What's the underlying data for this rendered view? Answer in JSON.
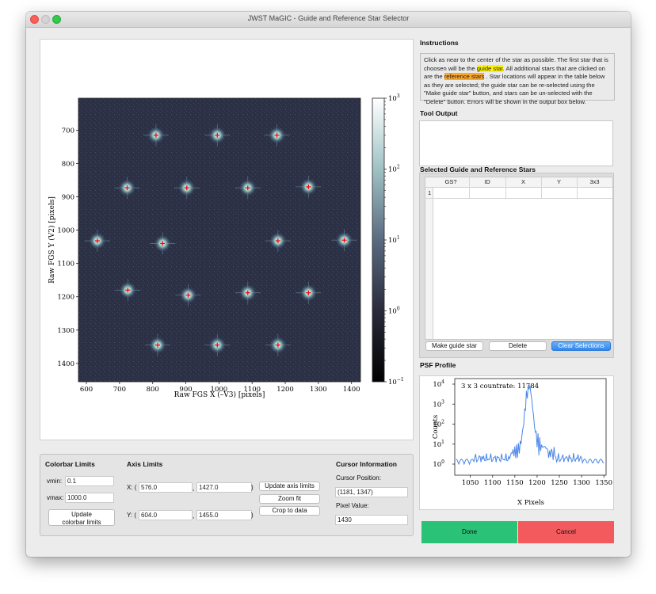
{
  "window": {
    "title": "JWST MaGIC - Guide and Reference Star Selector"
  },
  "image_plot": {
    "xlabel": "Raw FGS X (–V3) [pixels]",
    "ylabel": "Raw FGS Y (V2) [pixels]",
    "xticks": [
      "600",
      "700",
      "800",
      "900",
      "1000",
      "1100",
      "1200",
      "1300",
      "1400"
    ],
    "yticks": [
      "700",
      "800",
      "900",
      "1000",
      "1100",
      "1200",
      "1300",
      "1400"
    ],
    "colorbar_ticks": [
      "10",
      "10",
      "10",
      "10",
      "10"
    ],
    "colorbar_exps": [
      "3",
      "2",
      "1",
      "0",
      "−1"
    ],
    "colormap": "bone",
    "stars": [
      {
        "x": 810,
        "y": 715
      },
      {
        "x": 995,
        "y": 715
      },
      {
        "x": 1175,
        "y": 715
      },
      {
        "x": 723,
        "y": 873
      },
      {
        "x": 903,
        "y": 873
      },
      {
        "x": 1087,
        "y": 873
      },
      {
        "x": 1270,
        "y": 870
      },
      {
        "x": 633,
        "y": 1032
      },
      {
        "x": 830,
        "y": 1040
      },
      {
        "x": 1178,
        "y": 1032
      },
      {
        "x": 1378,
        "y": 1030
      },
      {
        "x": 725,
        "y": 1180
      },
      {
        "x": 907,
        "y": 1195
      },
      {
        "x": 1087,
        "y": 1188
      },
      {
        "x": 1270,
        "y": 1188
      },
      {
        "x": 815,
        "y": 1345
      },
      {
        "x": 995,
        "y": 1345
      },
      {
        "x": 1178,
        "y": 1345
      }
    ]
  },
  "instructions": {
    "title": "Instructions",
    "text_1": "Click as near to the center of the star as possible. The first star that is choosen will be the ",
    "guide_star": "guide star",
    "text_2": ". All additional stars that are clicked on are the ",
    "reference_stars": "reference stars",
    "text_3": " . Star locations will appear in the table below as they are selected; the guide star can be re-selected using the \"Make guide star\" button, and stars can be un-selected with the \"Delete\" button. Errors will be shown in the output box below."
  },
  "tool_output": {
    "title": "Tool Output",
    "text": ""
  },
  "selected_stars": {
    "title": "Selected Guide and Reference Stars",
    "columns": [
      "GS?",
      "ID",
      "X",
      "Y",
      "3x3"
    ],
    "row_numbers": [
      "1"
    ],
    "make_guide_label": "Make guide star",
    "delete_label": "Delete",
    "clear_label": "Clear Selections"
  },
  "psf": {
    "section_title": "PSF Profile",
    "annotation": "3 x 3 countrate: 11784",
    "xlabel": "X Pixels",
    "ylabel": "Counts",
    "xticks": [
      "1050",
      "1100",
      "1150",
      "1200",
      "1250",
      "1300",
      "1350"
    ],
    "yticks": [
      "10",
      "10",
      "10",
      "10",
      "10"
    ],
    "ytick_exps": [
      "4",
      "3",
      "2",
      "1",
      "0"
    ],
    "line_color": "#4a86e8"
  },
  "colorbar_limits": {
    "title": "Colorbar Limits",
    "vmin_label": "vmin:",
    "vmin": "0.1",
    "vmax_label": "vmax:",
    "vmax": "1000.0",
    "update_label_1": "Update",
    "update_label_2": "colorbar limits"
  },
  "axis_limits": {
    "title": "Axis Limits",
    "x_label": "X: (",
    "x_min": "576.0",
    "x_sep": ",",
    "x_max": "1427.0",
    "x_close": ")",
    "y_label": "Y: (",
    "y_min": "604.0",
    "y_sep": ",",
    "y_max": "1455.0",
    "y_close": ")",
    "update_label": "Update axis limits",
    "zoom_label": "Zoom fit",
    "crop_label": "Crop to data"
  },
  "cursor_info": {
    "title": "Cursor Information",
    "position_label": "Cursor Position:",
    "position": "(1181, 1347)",
    "pixel_label": "Pixel Value:",
    "pixel_value": "1430"
  },
  "actions": {
    "done": "Done",
    "cancel": "Cancel"
  },
  "colors": {
    "done": "#29c276",
    "cancel": "#f25a5e",
    "marker": "#ff0000",
    "highlight_guide": "#fff200",
    "highlight_ref": "#ffa726"
  }
}
